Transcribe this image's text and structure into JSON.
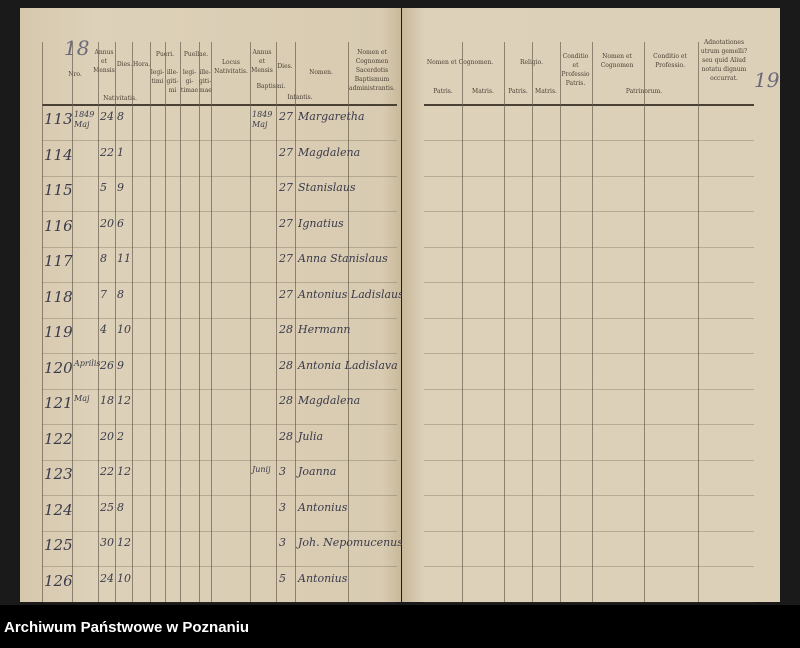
{
  "left_page": {
    "page_number": "18",
    "headers": {
      "nro": "Nro.",
      "annus_mensis": "Annus et Mensis",
      "dies": "Dies.",
      "hora": "Hora.",
      "nativitatis": "Nativitatis.",
      "pueri": "Pueri.",
      "puellae": "Puellae.",
      "legitimi": "legi-timi",
      "illegitimi": "ille-giti-mi",
      "legitimae": "legi-gi-timae",
      "illegitimae": "ille-giti-mae",
      "locus": "Locus Nativitatis.",
      "annus_mensis_baptismi": "Annus et Mensis",
      "dies_baptismi": "Dies.",
      "baptismi": "Baptismi.",
      "nomen": "Nomen.",
      "infantis": "Infantis.",
      "sacerdos": "Nomen et Cognomen Sacerdotis Baptismum administrantis."
    },
    "rows": [
      {
        "nro": "113",
        "annus": "1849 Maj",
        "dies": "24",
        "hora": "8",
        "bapt_annus": "1849 Maj",
        "bapt_dies": "27",
        "nomen": "Margaretha"
      },
      {
        "nro": "114",
        "annus": "",
        "dies": "22",
        "hora": "1",
        "bapt_annus": "",
        "bapt_dies": "27",
        "nomen": "Magdalena"
      },
      {
        "nro": "115",
        "annus": "",
        "dies": "5",
        "hora": "9",
        "bapt_annus": "",
        "bapt_dies": "27",
        "nomen": "Stanislaus"
      },
      {
        "nro": "116",
        "annus": "",
        "dies": "20",
        "hora": "6",
        "bapt_annus": "",
        "bapt_dies": "27",
        "nomen": "Ignatius"
      },
      {
        "nro": "117",
        "annus": "",
        "dies": "8",
        "hora": "11",
        "bapt_annus": "",
        "bapt_dies": "27",
        "nomen": "Anna Stanislaus"
      },
      {
        "nro": "118",
        "annus": "",
        "dies": "7",
        "hora": "8",
        "bapt_annus": "",
        "bapt_dies": "27",
        "nomen": "Antonius Ladislaus"
      },
      {
        "nro": "119",
        "annus": "",
        "dies": "4",
        "hora": "10",
        "bapt_annus": "",
        "bapt_dies": "28",
        "nomen": "Hermann"
      },
      {
        "nro": "120",
        "annus": "Aprilis",
        "dies": "26",
        "hora": "9",
        "bapt_annus": "",
        "bapt_dies": "28",
        "nomen": "Antonia Ladislava"
      },
      {
        "nro": "121",
        "annus": "Maj",
        "dies": "18",
        "hora": "12",
        "bapt_annus": "",
        "bapt_dies": "28",
        "nomen": "Magdalena"
      },
      {
        "nro": "122",
        "annus": "",
        "dies": "20",
        "hora": "2",
        "bapt_annus": "",
        "bapt_dies": "28",
        "nomen": "Julia"
      },
      {
        "nro": "123",
        "annus": "",
        "dies": "22",
        "hora": "12",
        "bapt_annus": "Junij",
        "bapt_dies": "3",
        "nomen": "Joanna"
      },
      {
        "nro": "124",
        "annus": "",
        "dies": "25",
        "hora": "8",
        "bapt_annus": "",
        "bapt_dies": "3",
        "nomen": "Antonius"
      },
      {
        "nro": "125",
        "annus": "",
        "dies": "30",
        "hora": "12",
        "bapt_annus": "",
        "bapt_dies": "3",
        "nomen": "Joh. Nepomucenus"
      },
      {
        "nro": "126",
        "annus": "",
        "dies": "24",
        "hora": "10",
        "bapt_annus": "",
        "bapt_dies": "5",
        "nomen": "Antonius"
      }
    ]
  },
  "right_page": {
    "page_number": "19",
    "headers": {
      "nomen_cognomen": "Nomen et Cognomen.",
      "patris": "Patris.",
      "matris": "Matris.",
      "religio": "Religio.",
      "religio_patris": "Patris.",
      "religio_matris": "Matris.",
      "conditio_patris": "Conditio et Professio Patris.",
      "patrinorum_nomen": "Nomen et Cognomen",
      "patrinorum_conditio": "Conditio et Professio.",
      "patrinorum": "Patrinorum.",
      "adnotationes": "Adnotationes utrum gemelli? seu quid Aliud notatu dignum occurrat."
    }
  },
  "footer": {
    "archive": "Archiwum Państwowe w Poznaniu"
  }
}
